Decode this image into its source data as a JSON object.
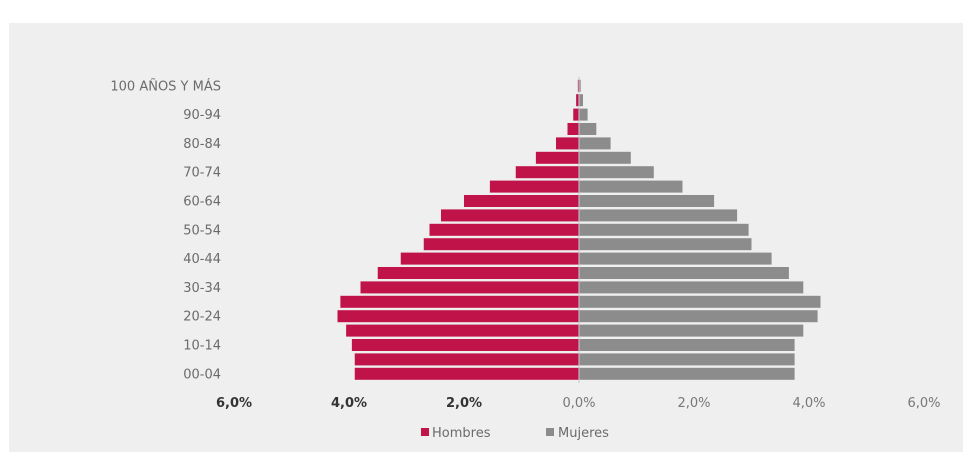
{
  "chart_data": {
    "type": "bar",
    "orientation": "horizontal-population-pyramid",
    "categories": [
      "00-04",
      "05-09",
      "10-14",
      "15-19",
      "20-24",
      "25-29",
      "30-34",
      "35-39",
      "40-44",
      "45-49",
      "50-54",
      "55-59",
      "60-64",
      "65-69",
      "70-74",
      "75-79",
      "80-84",
      "85-89",
      "90-94",
      "95-99",
      "100 AÑOS Y MÁS"
    ],
    "visible_category_labels": [
      "00-04",
      "10-14",
      "20-24",
      "30-34",
      "40-44",
      "50-54",
      "60-64",
      "70-74",
      "80-84",
      "90-94",
      "100 AÑOS Y MÁS"
    ],
    "series": [
      {
        "name": "Hombres",
        "color": "#c0134a",
        "values": [
          3.9,
          3.9,
          3.95,
          4.05,
          4.2,
          4.15,
          3.8,
          3.5,
          3.1,
          2.7,
          2.6,
          2.4,
          2.0,
          1.55,
          1.1,
          0.75,
          0.4,
          0.2,
          0.1,
          0.05,
          0.02
        ]
      },
      {
        "name": "Mujeres",
        "color": "#8c8c8c",
        "values": [
          3.75,
          3.75,
          3.75,
          3.9,
          4.15,
          4.2,
          3.9,
          3.65,
          3.35,
          3.0,
          2.95,
          2.75,
          2.35,
          1.8,
          1.3,
          0.9,
          0.55,
          0.3,
          0.15,
          0.07,
          0.03
        ]
      }
    ],
    "xlim": [
      -6,
      6
    ],
    "x_ticks": [
      {
        "value": -6,
        "label": "6,0%",
        "bold": true
      },
      {
        "value": -4,
        "label": "4,0%",
        "bold": true
      },
      {
        "value": -2,
        "label": "2,0%",
        "bold": true
      },
      {
        "value": 0,
        "label": "0,0%",
        "bold": false
      },
      {
        "value": 2,
        "label": "2,0%",
        "bold": false
      },
      {
        "value": 4,
        "label": "4,0%",
        "bold": false
      },
      {
        "value": 6,
        "label": "6,0%",
        "bold": false
      }
    ],
    "grid": false,
    "legend_position": "bottom-center"
  }
}
